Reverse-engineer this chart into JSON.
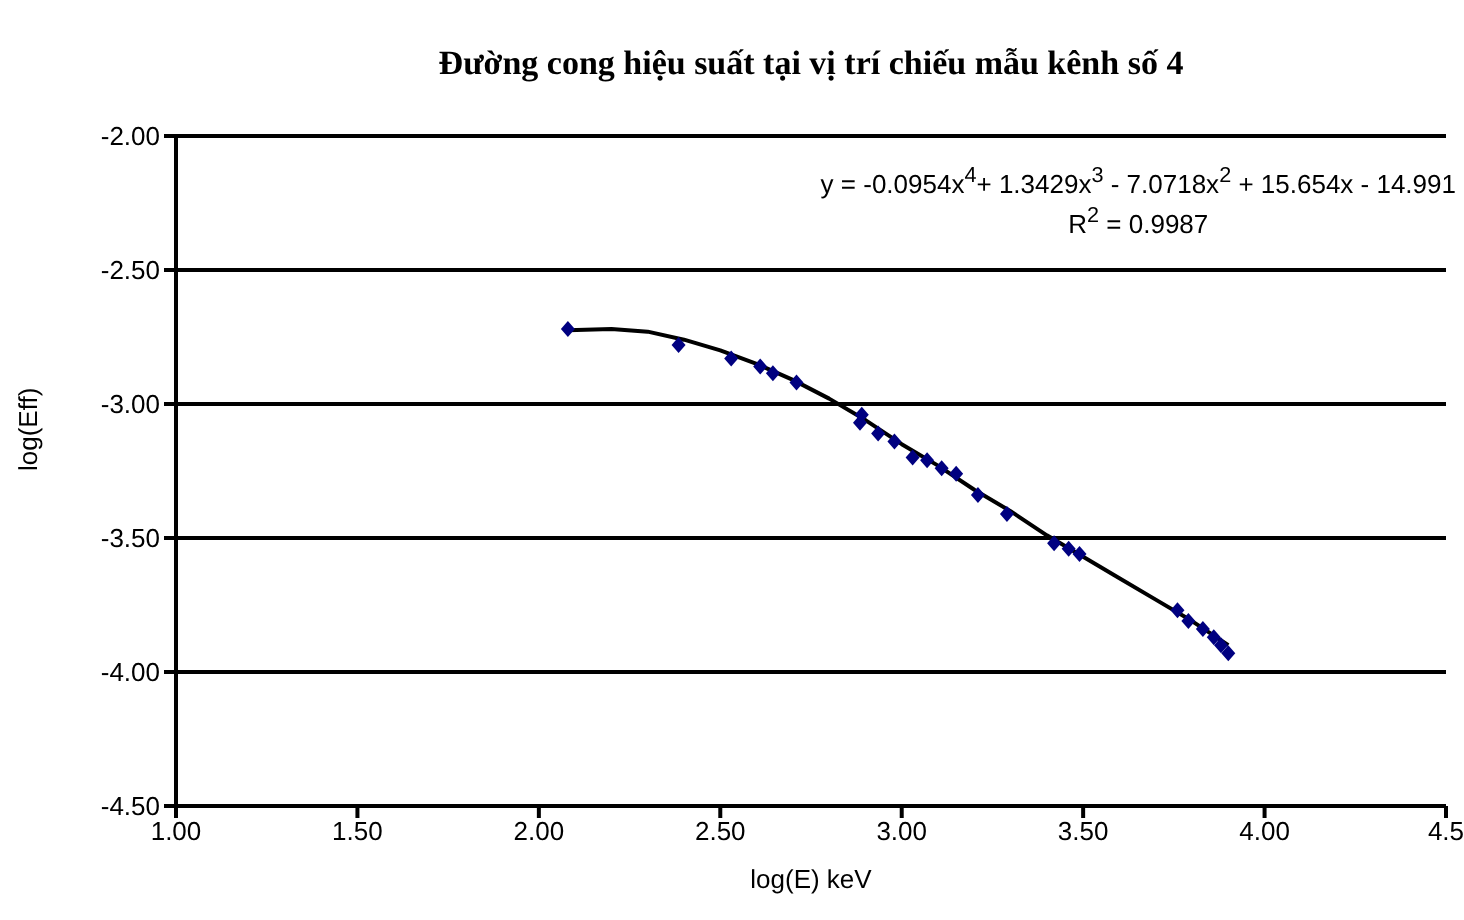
{
  "chart_data": {
    "type": "scatter",
    "title": "Đường cong hiệu suất tại vị trí chiếu mẫu kênh số 4",
    "xlabel": "log(E) keV",
    "ylabel": "log(Eff)",
    "annotations": [
      "y = -0.0954x$^{4}$+ 1.3429x$^{3}$ - 7.0718x$^{2}$ + 15.654x - 14.991",
      "R$^{2}$ = 0.9987"
    ],
    "series": [
      {
        "color": "#000080",
        "marker": "diamond",
        "x": [
          2.08,
          2.385,
          2.53,
          2.61,
          2.645,
          2.71,
          2.89,
          2.885,
          2.935,
          2.98,
          3.03,
          3.07,
          3.11,
          3.15,
          3.21,
          3.29,
          3.42,
          3.46,
          3.49,
          3.76,
          3.79,
          3.83,
          3.86,
          3.88,
          3.9
        ],
        "values": [
          -2.72,
          -2.78,
          -2.83,
          -2.86,
          -2.885,
          -2.92,
          -3.04,
          -3.07,
          -3.11,
          -3.14,
          -3.2,
          -3.21,
          -3.24,
          -3.26,
          -3.34,
          -3.41,
          -3.52,
          -3.54,
          -3.56,
          -3.77,
          -3.81,
          -3.84,
          -3.87,
          -3.9,
          -3.93
        ]
      },
      {
        "type": "line",
        "color": "#000000",
        "marker": "none",
        "x": [
          2.08,
          2.2,
          2.3,
          2.4,
          2.5,
          2.6,
          2.7,
          2.8,
          2.9,
          3.0,
          3.1,
          3.2,
          3.3,
          3.4,
          3.5,
          3.6,
          3.7,
          3.8,
          3.9
        ],
        "values": [
          -2.725,
          -2.72,
          -2.73,
          -2.76,
          -2.8,
          -2.85,
          -2.91,
          -2.98,
          -3.06,
          -3.15,
          -3.23,
          -3.32,
          -3.4,
          -3.49,
          -3.57,
          -3.65,
          -3.73,
          -3.81,
          -3.9
        ]
      }
    ],
    "xlim": [
      1,
      4.5
    ],
    "xticks": [
      {
        "value": 1,
        "label": "1.00"
      },
      {
        "value": 1.5,
        "label": "1.50"
      },
      {
        "value": 2,
        "label": "2.00"
      },
      {
        "value": 2.5,
        "label": "2.50"
      },
      {
        "value": 3,
        "label": "3.00"
      },
      {
        "value": 3.5,
        "label": "3.50"
      },
      {
        "value": 4,
        "label": "4.00"
      },
      {
        "value": 4.5,
        "label": "4.5"
      }
    ],
    "ylim": [
      -4.5,
      -2
    ],
    "yticks": [
      {
        "value": -4.5,
        "label": "-4.50"
      },
      {
        "value": -4,
        "label": "-4.00"
      },
      {
        "value": -3.5,
        "label": "-3.50"
      },
      {
        "value": -3,
        "label": "-3.00"
      },
      {
        "value": -2.5,
        "label": "-2.50"
      },
      {
        "value": -2,
        "label": "-2.00"
      }
    ],
    "grid": "y",
    "legend": false
  }
}
